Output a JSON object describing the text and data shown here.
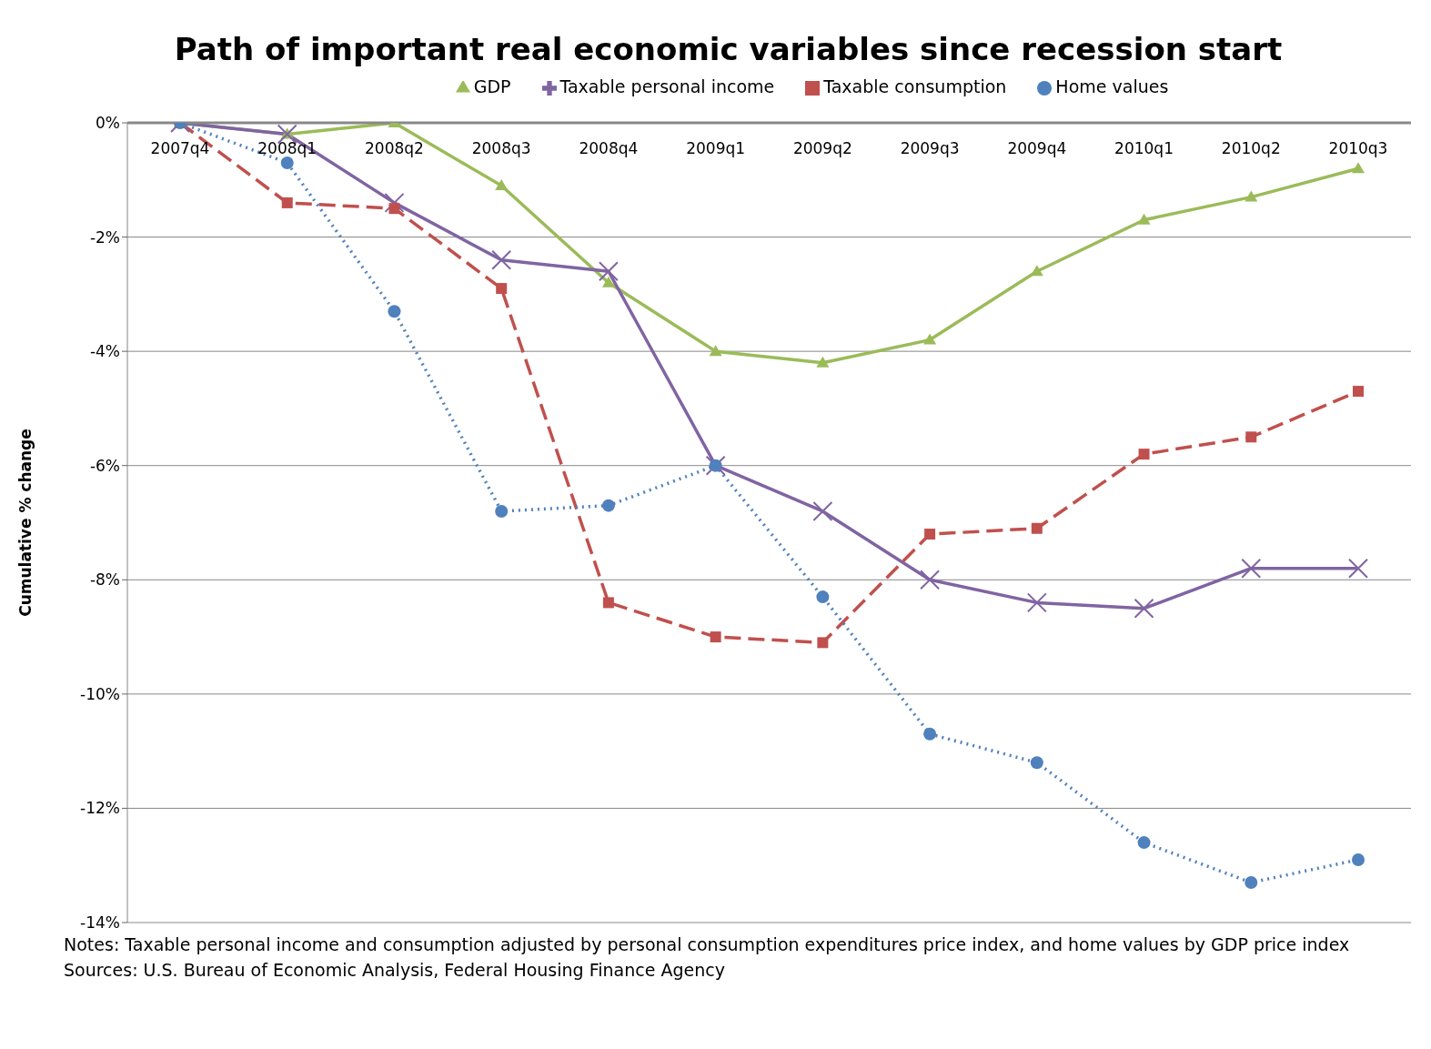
{
  "chart_data": {
    "type": "line",
    "title": "Path of important real economic variables since recession start",
    "ylabel": "Cumulative % change",
    "categories": [
      "2007q4",
      "2008q1",
      "2008q2",
      "2008q3",
      "2008q4",
      "2009q1",
      "2009q2",
      "2009q3",
      "2009q4",
      "2010q1",
      "2010q2",
      "2010q3"
    ],
    "series": [
      {
        "name": "GDP",
        "color": "#9bbb59",
        "marker": "triangle",
        "line_style": "solid",
        "values": [
          0,
          -0.2,
          0,
          -1.1,
          -2.8,
          -4.0,
          -4.2,
          -3.8,
          -2.6,
          -1.7,
          -1.3,
          -0.8
        ]
      },
      {
        "name": "Taxable personal income",
        "color": "#8064a2",
        "marker": "cross",
        "line_style": "solid",
        "values": [
          0,
          -0.2,
          -1.4,
          -2.4,
          -2.6,
          -6.0,
          -6.8,
          -8.0,
          -8.4,
          -8.5,
          -7.8,
          -7.8
        ]
      },
      {
        "name": "Taxable consumption",
        "color": "#c0504d",
        "marker": "square",
        "line_style": "dashed",
        "values": [
          0,
          -1.4,
          -1.5,
          -2.9,
          -8.4,
          -9.0,
          -9.1,
          -7.2,
          -7.1,
          -5.8,
          -5.5,
          -4.7
        ]
      },
      {
        "name": "Home values",
        "color": "#4f81bd",
        "marker": "circle",
        "line_style": "dotted",
        "values": [
          0,
          -0.7,
          -3.3,
          -6.8,
          -6.7,
          -6.0,
          -8.3,
          -10.7,
          -11.2,
          -12.6,
          -13.3,
          -12.9
        ]
      }
    ],
    "ylim": [
      -14,
      0
    ],
    "yticks": [
      {
        "value": 0,
        "label": "0%"
      },
      {
        "value": -2,
        "label": "-2%"
      },
      {
        "value": -4,
        "label": "-4%"
      },
      {
        "value": -6,
        "label": "-6%"
      },
      {
        "value": -8,
        "label": "-8%"
      },
      {
        "value": -10,
        "label": "-10%"
      },
      {
        "value": -12,
        "label": "-12%"
      },
      {
        "value": -14,
        "label": "-14%"
      }
    ],
    "grid": "y",
    "legend": "top",
    "annotations": [
      "Notes: Taxable personal income and consumption adjusted by personal consumption expenditures price index, and home values by GDP price index",
      "Sources: U.S. Bureau of Economic Analysis, Federal Housing Finance Agency"
    ]
  }
}
